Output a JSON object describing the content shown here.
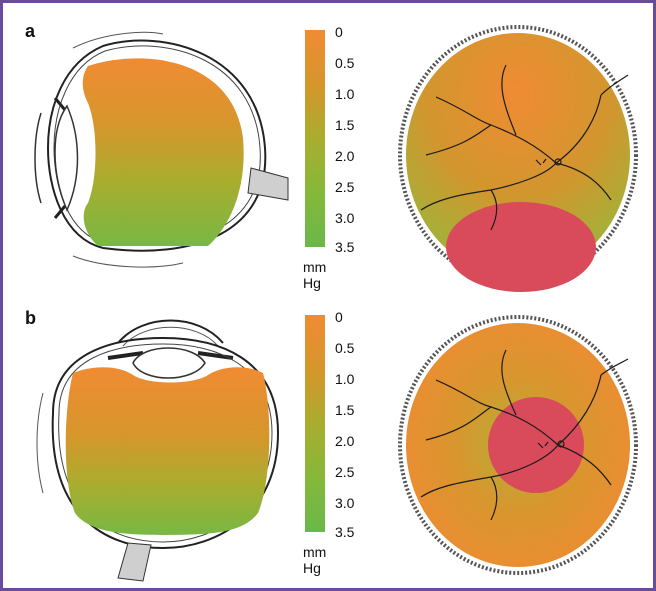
{
  "panels": [
    {
      "label": "a",
      "scale": {
        "ticks": [
          "0",
          "0.5",
          "1.0",
          "1.5",
          "2.0",
          "2.5",
          "3.0",
          "3.5"
        ],
        "unit": "mm Hg"
      }
    },
    {
      "label": "b",
      "scale": {
        "ticks": [
          "0",
          "0.5",
          "1.0",
          "1.5",
          "2.0",
          "2.5",
          "3.0",
          "3.5"
        ],
        "unit": "mm Hg"
      }
    }
  ],
  "colors": {
    "frame": "#6a4a9c",
    "pressure_high": "#f08b33",
    "pressure_low": "#69b84a",
    "lesion": "#d94a5a",
    "vessel": "#1c1c1c"
  }
}
